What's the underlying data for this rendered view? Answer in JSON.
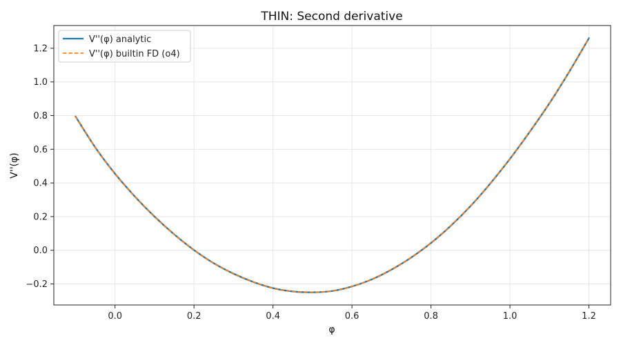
{
  "chart_data": {
    "type": "line",
    "title": "THIN: Second derivative",
    "xlabel": "φ",
    "ylabel": "V''(φ)",
    "xlim": [
      -0.155,
      1.255
    ],
    "ylim": [
      -0.325,
      1.335
    ],
    "xticks": [
      0.0,
      0.2,
      0.4,
      0.6,
      0.8,
      1.0,
      1.2
    ],
    "xtick_labels": [
      "0.0",
      "0.2",
      "0.4",
      "0.6",
      "0.8",
      "1.0",
      "1.2"
    ],
    "yticks": [
      -0.2,
      0.0,
      0.2,
      0.4,
      0.6,
      0.8,
      1.0,
      1.2
    ],
    "ytick_labels": [
      "−0.2",
      "0.0",
      "0.2",
      "0.4",
      "0.6",
      "0.8",
      "1.0",
      "1.2"
    ],
    "grid": true,
    "legend_position": "top-left",
    "series": [
      {
        "name": "V''(φ) analytic",
        "color": "#1f77b4",
        "style": "solid",
        "x": [
          -0.1,
          -0.05,
          0.0,
          0.05,
          0.1,
          0.15,
          0.2,
          0.25,
          0.3,
          0.35,
          0.4,
          0.45,
          0.5,
          0.55,
          0.6,
          0.65,
          0.7,
          0.75,
          0.8,
          0.85,
          0.9,
          0.95,
          1.0,
          1.05,
          1.1,
          1.15,
          1.2
        ],
        "y": [
          0.795,
          0.611,
          0.455,
          0.32,
          0.2,
          0.094,
          0.001,
          -0.077,
          -0.139,
          -0.188,
          -0.225,
          -0.245,
          -0.25,
          -0.242,
          -0.215,
          -0.173,
          -0.115,
          -0.043,
          0.043,
          0.145,
          0.262,
          0.396,
          0.543,
          0.703,
          0.873,
          1.06,
          1.26
        ]
      },
      {
        "name": "V''(φ) builtin FD (o4)",
        "color": "#ff7f0e",
        "style": "dashed",
        "x": [
          -0.1,
          -0.05,
          0.0,
          0.05,
          0.1,
          0.15,
          0.2,
          0.25,
          0.3,
          0.35,
          0.4,
          0.45,
          0.5,
          0.55,
          0.6,
          0.65,
          0.7,
          0.75,
          0.8,
          0.85,
          0.9,
          0.95,
          1.0,
          1.05,
          1.1,
          1.15,
          1.2
        ],
        "y": [
          0.795,
          0.611,
          0.455,
          0.32,
          0.2,
          0.094,
          0.001,
          -0.077,
          -0.139,
          -0.188,
          -0.225,
          -0.245,
          -0.25,
          -0.242,
          -0.215,
          -0.173,
          -0.115,
          -0.043,
          0.043,
          0.145,
          0.262,
          0.396,
          0.543,
          0.703,
          0.873,
          1.06,
          1.26
        ]
      }
    ]
  }
}
